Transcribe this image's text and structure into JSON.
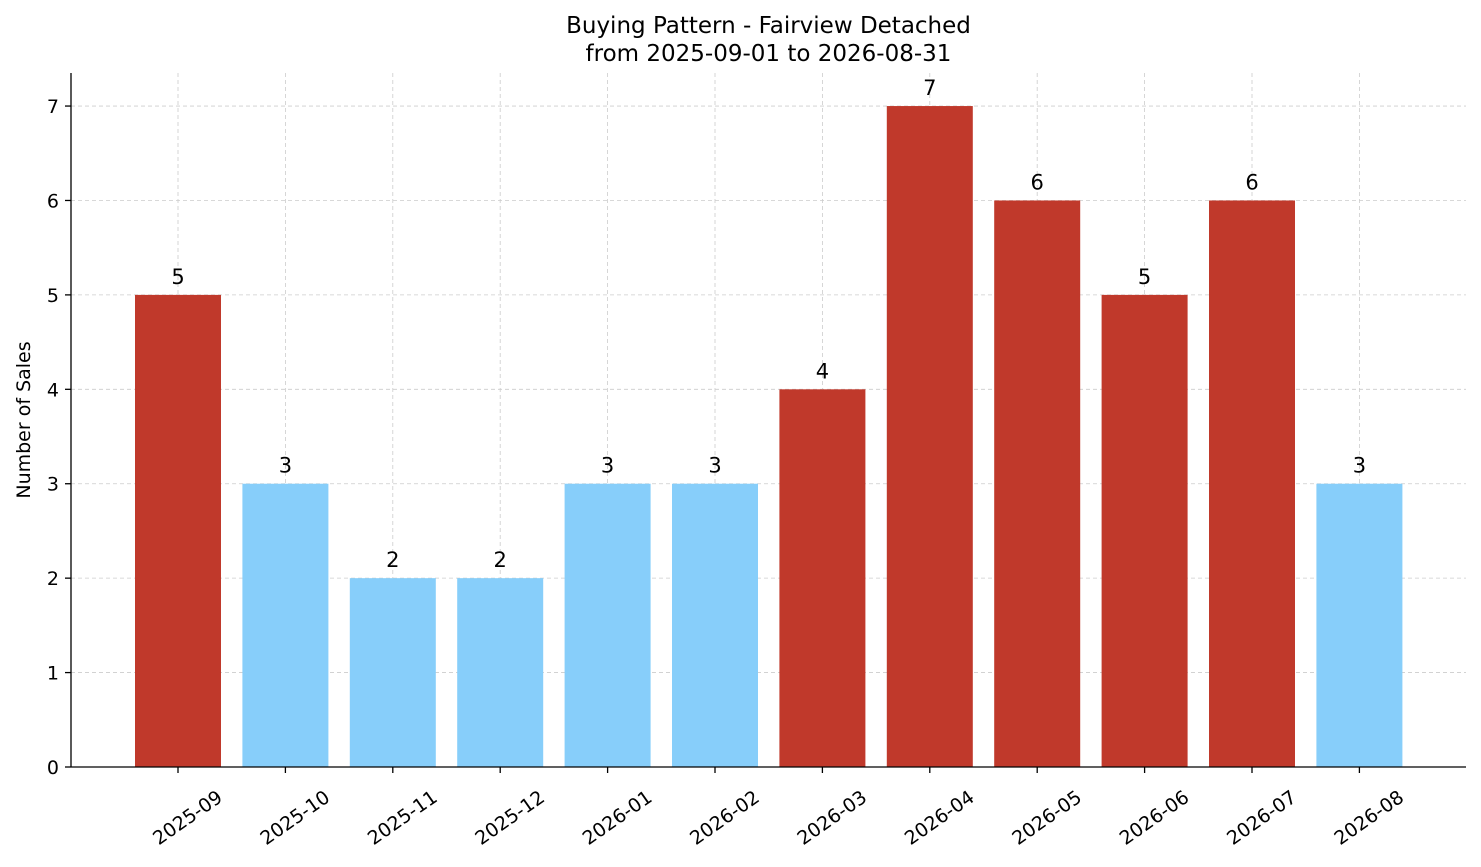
{
  "chart_data": {
    "type": "bar",
    "title": "Buying Pattern - Fairview Detached",
    "subtitle": "from 2025-09-01 to 2026-08-31",
    "xlabel": "",
    "ylabel": "Number of Sales",
    "ylim": [
      0,
      7.35
    ],
    "yticks": [
      0,
      1,
      2,
      3,
      4,
      5,
      6,
      7
    ],
    "grid": true,
    "categories": [
      "2025-09",
      "2025-10",
      "2025-11",
      "2025-12",
      "2026-01",
      "2026-02",
      "2026-03",
      "2026-04",
      "2026-05",
      "2026-06",
      "2026-07",
      "2026-08"
    ],
    "values": [
      5,
      3,
      2,
      2,
      3,
      3,
      4,
      7,
      6,
      5,
      6,
      3
    ],
    "bar_colors": [
      "#c0392b",
      "#87cefa",
      "#87cefa",
      "#87cefa",
      "#87cefa",
      "#87cefa",
      "#c0392b",
      "#c0392b",
      "#c0392b",
      "#c0392b",
      "#c0392b",
      "#87cefa"
    ],
    "legend": null
  }
}
